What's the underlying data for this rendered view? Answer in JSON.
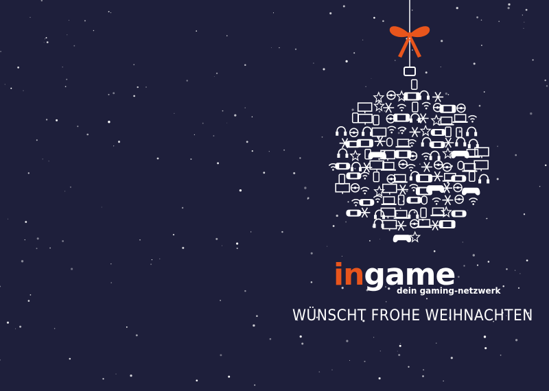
{
  "card": {
    "background_color": "#1e1f3b",
    "accent_color": "#e8551c",
    "ornament_color": "#ffffff",
    "bow_color": "#e8551c"
  },
  "logo": {
    "part_orange": "in",
    "part_white": "game",
    "tagline": "dein gaming-netzwerk"
  },
  "greeting": "WÜNSCHT FROHE WEIHNACHTEN",
  "ornament_icons": [
    "controller-icon",
    "handheld-icon",
    "snowflake-icon",
    "star-icon",
    "monitor-icon",
    "laptop-icon",
    "headset-icon",
    "phone-icon",
    "tablet-icon",
    "pokeball-icon",
    "wifi-icon",
    "mouse-icon"
  ]
}
